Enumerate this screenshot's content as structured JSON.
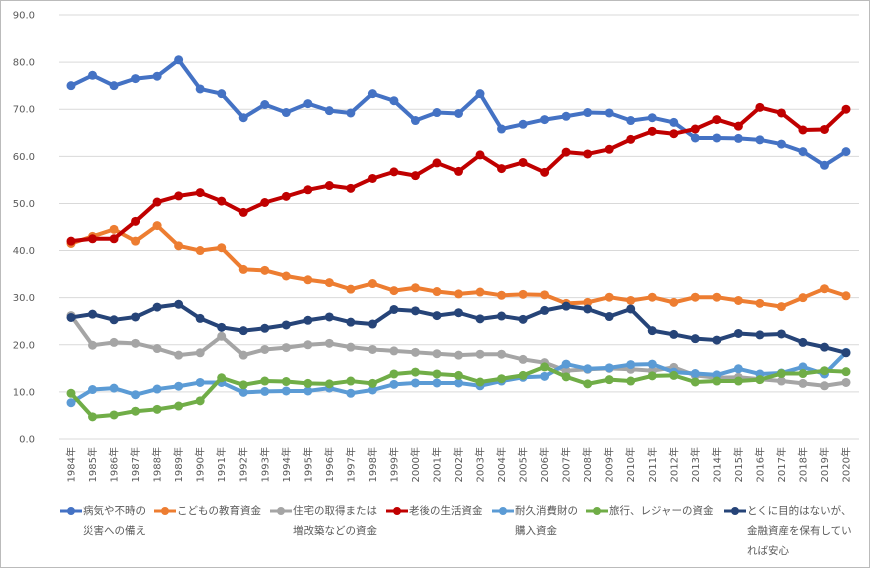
{
  "chart_data": {
    "type": "line",
    "categories": [
      "1984年",
      "1985年",
      "1986年",
      "1987年",
      "1988年",
      "1989年",
      "1990年",
      "1991年",
      "1992年",
      "1993年",
      "1994年",
      "1995年",
      "1996年",
      "1997年",
      "1998年",
      "1999年",
      "2000年",
      "2001年",
      "2002年",
      "2003年",
      "2004年",
      "2005年",
      "2006年",
      "2007年",
      "2008年",
      "2009年",
      "2010年",
      "2011年",
      "2012年",
      "2013年",
      "2014年",
      "2015年",
      "2016年",
      "2017年",
      "2018年",
      "2019年",
      "2020年"
    ],
    "series": [
      {
        "name": "病気や不時の災害への備え",
        "color": "#4472c4",
        "values": [
          75,
          77.2,
          75,
          76.5,
          77,
          80.5,
          74.3,
          73.3,
          68.2,
          71,
          69.3,
          71.2,
          69.7,
          69.2,
          73.3,
          71.8,
          67.6,
          69.3,
          69.1,
          73.3,
          65.8,
          66.8,
          67.8,
          68.5,
          69.3,
          69.2,
          67.6,
          68.2,
          67.2,
          63.9,
          63.9,
          63.8,
          63.5,
          62.6,
          61,
          58.1,
          61
        ]
      },
      {
        "name": "こどもの教育資金",
        "color": "#ed7d31",
        "values": [
          41.5,
          43,
          44.5,
          42,
          45.3,
          41,
          40,
          40.6,
          36,
          35.8,
          34.6,
          33.8,
          33.2,
          31.8,
          33,
          31.5,
          32.1,
          31.3,
          30.8,
          31.2,
          30.5,
          30.7,
          30.6,
          28.8,
          29,
          30.1,
          29.4,
          30.1,
          29,
          30.1,
          30.1,
          29.4,
          28.8,
          28.1,
          30,
          31.9,
          30.4
        ]
      },
      {
        "name": "住宅の取得または増改築などの資金",
        "color": "#a5a5a5",
        "values": [
          26.2,
          19.9,
          20.5,
          20.3,
          19.2,
          17.8,
          18.3,
          21.8,
          17.8,
          19,
          19.4,
          20,
          20.3,
          19.5,
          19,
          18.7,
          18.4,
          18.1,
          17.8,
          18,
          18,
          16.9,
          16.2,
          14.5,
          14.8,
          15,
          14.8,
          14.5,
          15.2,
          13.5,
          13,
          13.1,
          12.7,
          12.3,
          11.8,
          11.3,
          12
        ]
      },
      {
        "name": "老後の生活資金",
        "color": "#c00000",
        "values": [
          42,
          42.5,
          42.5,
          46.2,
          50.3,
          51.6,
          52.3,
          50.5,
          48.1,
          50.2,
          51.5,
          52.9,
          53.8,
          53.2,
          55.3,
          56.7,
          55.9,
          58.6,
          56.8,
          60.3,
          57.4,
          58.7,
          56.6,
          60.9,
          60.5,
          61.5,
          63.6,
          65.3,
          64.8,
          65.8,
          67.8,
          66.4,
          70.4,
          69.2,
          65.6,
          65.7,
          70
        ]
      },
      {
        "name": "耐久消費財の購入資金",
        "color": "#5b9bd5",
        "values": [
          7.7,
          10.5,
          10.8,
          9.4,
          10.6,
          11.2,
          12,
          12,
          9.9,
          10.1,
          10.2,
          10.2,
          10.8,
          9.7,
          10.4,
          11.6,
          11.9,
          11.9,
          11.9,
          11.3,
          12.3,
          13.1,
          13.3,
          15.9,
          14.9,
          15.1,
          15.8,
          15.9,
          14.2,
          13.9,
          13.6,
          14.9,
          13.8,
          14,
          15.3,
          13.8,
          18.4
        ]
      },
      {
        "name": "旅行、レジャーの資金",
        "color": "#70ad47",
        "values": [
          9.7,
          4.7,
          5.1,
          5.9,
          6.3,
          7,
          8.1,
          13,
          11.5,
          12.3,
          12.2,
          11.8,
          11.7,
          12.3,
          11.8,
          13.8,
          14.2,
          13.8,
          13.5,
          12.1,
          12.8,
          13.5,
          15.3,
          13.2,
          11.7,
          12.6,
          12.3,
          13.4,
          13.5,
          12.1,
          12.3,
          12.3,
          12.6,
          13.9,
          13.9,
          14.5,
          14.3
        ]
      },
      {
        "name": "とくに目的はないが、金融資産を保有していれば安心",
        "color": "#264478",
        "values": [
          25.8,
          26.5,
          25.3,
          25.9,
          28,
          28.6,
          25.6,
          23.7,
          23,
          23.5,
          24.2,
          25.2,
          25.9,
          24.8,
          24.4,
          27.5,
          27.2,
          26.2,
          26.8,
          25.5,
          26.1,
          25.4,
          27.3,
          28.2,
          27.6,
          26,
          27.6,
          23,
          22.2,
          21.3,
          21,
          22.4,
          22.1,
          22.3,
          20.5,
          19.5,
          18.3
        ]
      }
    ],
    "ylim": [
      0,
      90
    ],
    "yticks": [
      {
        "value": 0,
        "label": "0.0"
      },
      {
        "value": 10,
        "label": "10.0"
      },
      {
        "value": 20,
        "label": "20.0"
      },
      {
        "value": 30,
        "label": "30.0"
      },
      {
        "value": 40,
        "label": "40.0"
      },
      {
        "value": 50,
        "label": "50.0"
      },
      {
        "value": 60,
        "label": "60.0"
      },
      {
        "value": 70,
        "label": "70.0"
      },
      {
        "value": 80,
        "label": "80.0"
      },
      {
        "value": 90,
        "label": "90.0"
      }
    ],
    "grid": true
  }
}
